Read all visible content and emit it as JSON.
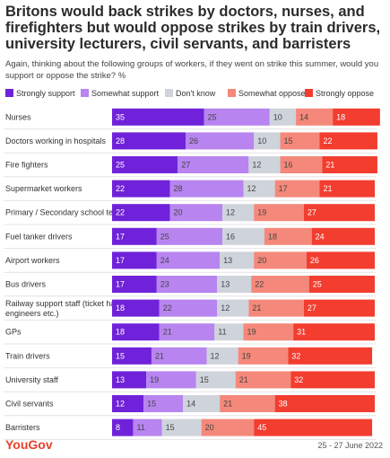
{
  "chart_data": {
    "type": "bar",
    "stacked": true,
    "orientation": "horizontal",
    "title": "Britons would back strikes by doctors, nurses, and firefighters but would oppose strikes by train drivers, university lecturers, civil servants, and barristers",
    "subtitle": "Again, thinking about the following groups of workers, if they went on strike this summer, would you support or oppose the strike? %",
    "categories": [
      "Nurses",
      "Doctors working in hospitals",
      "Fire fighters",
      "Supermarket workers",
      "Primary / Secondary school teachers",
      "Fuel tanker drivers",
      "Airport workers",
      "Bus drivers",
      "Railway support staff (ticket hall staff, engineers etc.)",
      "GPs",
      "Train drivers",
      "University staff",
      "Civil servants",
      "Barristers"
    ],
    "series": [
      {
        "name": "Strongly support",
        "color": "#6f22d9",
        "values": [
          35,
          28,
          25,
          22,
          22,
          17,
          17,
          17,
          18,
          18,
          15,
          13,
          12,
          8
        ]
      },
      {
        "name": "Somewhat support",
        "color": "#b784f0",
        "values": [
          25,
          26,
          27,
          28,
          20,
          25,
          24,
          23,
          22,
          21,
          21,
          19,
          15,
          11
        ]
      },
      {
        "name": "Don't know",
        "color": "#cfd3db",
        "values": [
          10,
          10,
          12,
          12,
          12,
          16,
          13,
          13,
          12,
          11,
          12,
          15,
          14,
          15
        ]
      },
      {
        "name": "Somewhat oppose",
        "color": "#f4887a",
        "values": [
          14,
          15,
          16,
          17,
          19,
          18,
          20,
          22,
          21,
          19,
          19,
          21,
          21,
          20
        ]
      },
      {
        "name": "Strongly oppose",
        "color": "#f23d2f",
        "values": [
          18,
          22,
          21,
          21,
          27,
          24,
          26,
          25,
          27,
          31,
          32,
          32,
          38,
          45
        ]
      }
    ],
    "xlim": [
      0,
      100
    ],
    "legend_position": "top"
  },
  "footer": {
    "brand": "YouGov",
    "date": "25 - 27 June 2022"
  }
}
